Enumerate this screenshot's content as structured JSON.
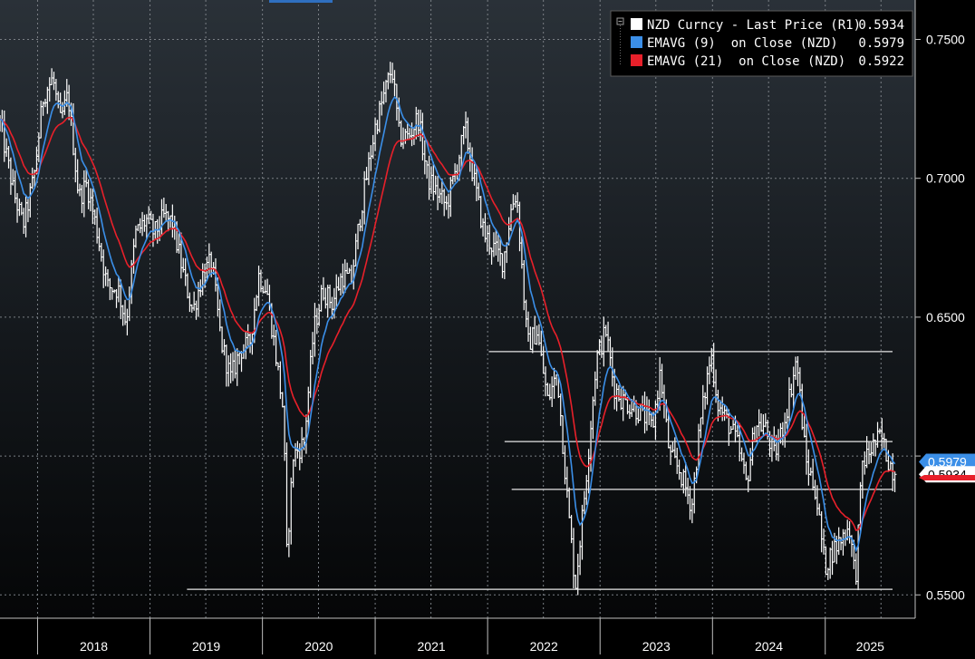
{
  "chart_data": {
    "type": "line",
    "y_axis_position": "right",
    "ylim": [
      0.5416,
      0.7642
    ],
    "yticks": [
      "0.5500",
      "0.6500",
      "0.7000",
      "0.7500"
    ],
    "yticks_values": [
      0.55,
      0.65,
      0.7,
      0.75
    ],
    "x_year_labels": [
      "2018",
      "2019",
      "2020",
      "2021",
      "2022",
      "2023",
      "2024",
      "2025"
    ],
    "grid": true,
    "legend_position": "top-right",
    "legend": [
      {
        "label": "NZD Curncy - Last Price (R1)",
        "value": "0.5934",
        "color": "#ffffff"
      },
      {
        "label": "EMAVG (9)  on Close (NZD)",
        "value": "0.5979",
        "color": "#3b8fe8"
      },
      {
        "label": "EMAVG (21)  on Close (NZD)",
        "value": "0.5922",
        "color": "#e8202a"
      }
    ],
    "last_value_tags": [
      {
        "value": 0.5979,
        "label": "0.5979",
        "color": "#3b8fe8"
      },
      {
        "value": 0.5934,
        "label": "0.5934",
        "color": "#ffffff"
      },
      {
        "value": 0.5922,
        "label": "",
        "color": "#e8202a"
      }
    ],
    "price_anchors": [
      [
        "2017-09-01",
        0.72
      ],
      [
        "2017-10-15",
        0.695
      ],
      [
        "2017-11-15",
        0.683
      ],
      [
        "2017-12-20",
        0.7
      ],
      [
        "2018-01-20",
        0.73
      ],
      [
        "2018-02-20",
        0.736
      ],
      [
        "2018-03-15",
        0.72
      ],
      [
        "2018-04-10",
        0.73
      ],
      [
        "2018-05-15",
        0.693
      ],
      [
        "2018-06-10",
        0.698
      ],
      [
        "2018-07-15",
        0.68
      ],
      [
        "2018-08-15",
        0.661
      ],
      [
        "2018-09-20",
        0.66
      ],
      [
        "2018-10-15",
        0.648
      ],
      [
        "2018-11-15",
        0.68
      ],
      [
        "2018-12-20",
        0.685
      ],
      [
        "2019-01-15",
        0.68
      ],
      [
        "2019-02-15",
        0.686
      ],
      [
        "2019-03-15",
        0.684
      ],
      [
        "2019-04-20",
        0.665
      ],
      [
        "2019-05-20",
        0.652
      ],
      [
        "2019-06-20",
        0.665
      ],
      [
        "2019-07-20",
        0.67
      ],
      [
        "2019-08-20",
        0.641
      ],
      [
        "2019-09-20",
        0.628
      ],
      [
        "2019-10-20",
        0.638
      ],
      [
        "2019-11-20",
        0.64
      ],
      [
        "2019-12-20",
        0.665
      ],
      [
        "2020-01-15",
        0.66
      ],
      [
        "2020-02-15",
        0.635
      ],
      [
        "2020-03-10",
        0.615
      ],
      [
        "2020-03-19",
        0.563
      ],
      [
        "2020-04-10",
        0.6
      ],
      [
        "2020-05-15",
        0.605
      ],
      [
        "2020-06-15",
        0.645
      ],
      [
        "2020-07-15",
        0.66
      ],
      [
        "2020-08-15",
        0.655
      ],
      [
        "2020-09-15",
        0.665
      ],
      [
        "2020-10-15",
        0.663
      ],
      [
        "2020-11-15",
        0.688
      ],
      [
        "2020-12-31",
        0.718
      ],
      [
        "2021-02-24",
        0.74
      ],
      [
        "2021-03-20",
        0.715
      ],
      [
        "2021-04-20",
        0.715
      ],
      [
        "2021-05-20",
        0.722
      ],
      [
        "2021-06-20",
        0.7
      ],
      [
        "2021-07-20",
        0.695
      ],
      [
        "2021-08-20",
        0.69
      ],
      [
        "2021-09-20",
        0.703
      ],
      [
        "2021-10-20",
        0.718
      ],
      [
        "2021-11-20",
        0.698
      ],
      [
        "2021-12-20",
        0.68
      ],
      [
        "2022-01-20",
        0.675
      ],
      [
        "2022-02-20",
        0.67
      ],
      [
        "2022-03-20",
        0.69
      ],
      [
        "2022-04-05",
        0.695
      ],
      [
        "2022-05-10",
        0.64
      ],
      [
        "2022-06-10",
        0.645
      ],
      [
        "2022-07-15",
        0.62
      ],
      [
        "2022-08-15",
        0.63
      ],
      [
        "2022-09-20",
        0.58
      ],
      [
        "2022-10-13",
        0.553
      ],
      [
        "2022-11-15",
        0.59
      ],
      [
        "2022-12-20",
        0.635
      ],
      [
        "2023-01-20",
        0.645
      ],
      [
        "2023-02-15",
        0.625
      ],
      [
        "2023-03-15",
        0.62
      ],
      [
        "2023-04-15",
        0.618
      ],
      [
        "2023-05-20",
        0.615
      ],
      [
        "2023-06-20",
        0.61
      ],
      [
        "2023-07-15",
        0.63
      ],
      [
        "2023-08-15",
        0.6
      ],
      [
        "2023-09-15",
        0.595
      ],
      [
        "2023-10-26",
        0.582
      ],
      [
        "2023-11-20",
        0.61
      ],
      [
        "2023-12-27",
        0.637
      ],
      [
        "2024-01-20",
        0.618
      ],
      [
        "2024-02-20",
        0.612
      ],
      [
        "2024-03-20",
        0.605
      ],
      [
        "2024-04-20",
        0.59
      ],
      [
        "2024-05-20",
        0.612
      ],
      [
        "2024-06-20",
        0.61
      ],
      [
        "2024-07-20",
        0.6
      ],
      [
        "2024-08-20",
        0.612
      ],
      [
        "2024-09-30",
        0.635
      ],
      [
        "2024-10-30",
        0.598
      ],
      [
        "2024-11-30",
        0.588
      ],
      [
        "2024-12-31",
        0.56
      ],
      [
        "2025-01-20",
        0.565
      ],
      [
        "2025-02-20",
        0.57
      ],
      [
        "2025-03-20",
        0.575
      ],
      [
        "2025-04-09",
        0.555
      ],
      [
        "2025-05-01",
        0.597
      ],
      [
        "2025-06-01",
        0.603
      ],
      [
        "2025-07-01",
        0.607
      ],
      [
        "2025-07-20",
        0.6
      ],
      [
        "2025-08-15",
        0.5934
      ]
    ],
    "reference_lines": [
      {
        "y": 0.6376,
        "from": "2022-01-05",
        "to": "2025-10-20"
      },
      {
        "y": 0.6052,
        "from": "2022-02-25",
        "to": "2025-10-20"
      },
      {
        "y": 0.588,
        "from": "2022-03-20",
        "to": "2025-10-20"
      },
      {
        "y": 0.552,
        "from": "2019-05-01",
        "to": "2025-10-20"
      }
    ]
  }
}
